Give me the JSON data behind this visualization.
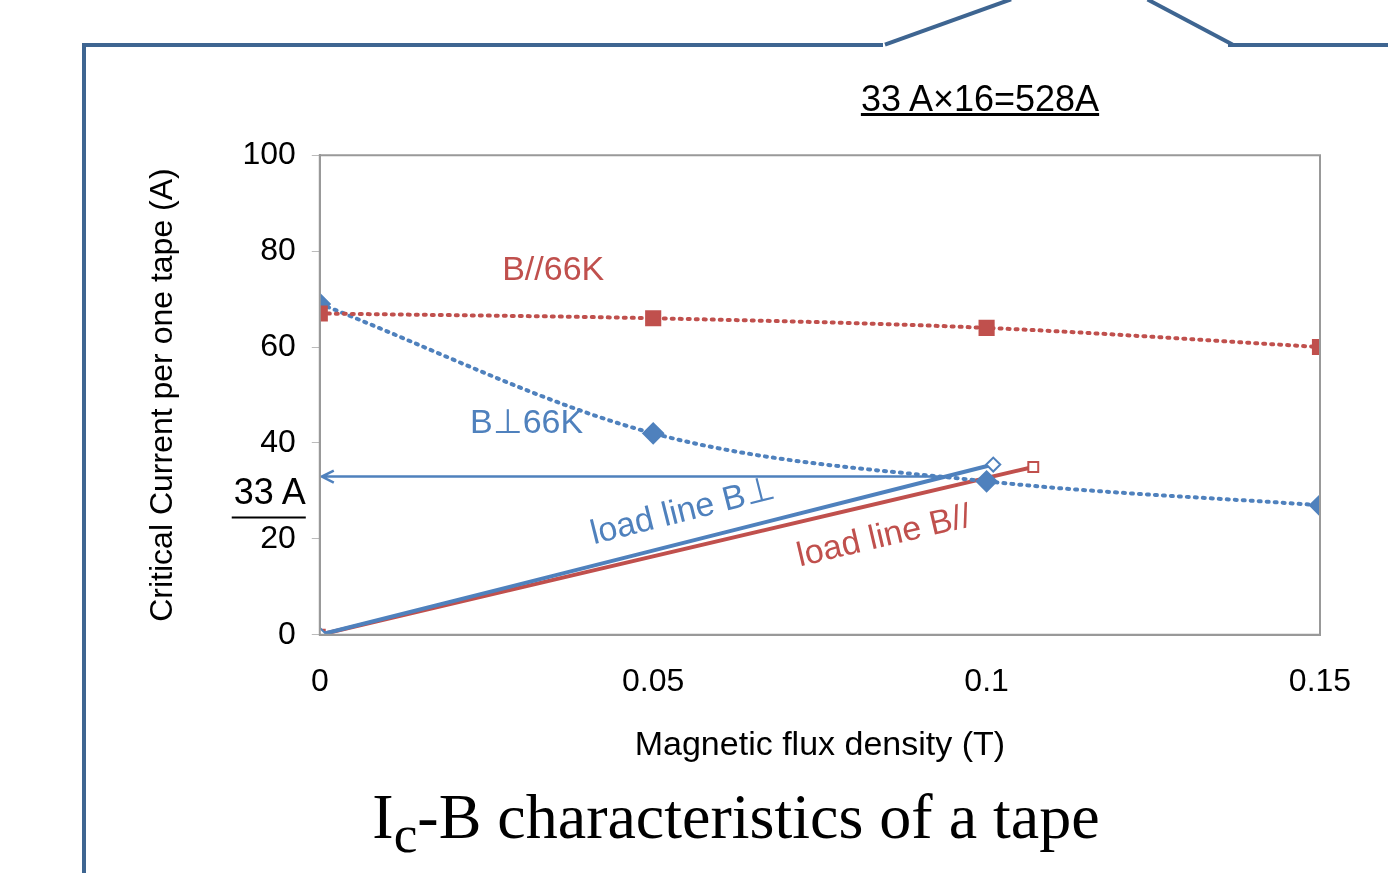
{
  "chart_data": {
    "type": "line",
    "title": "I$_{c}$-B characteristics of a tape",
    "xlabel": "Magnetic flux density (T)",
    "ylabel": "Critical Current per one tape (A)",
    "annotations": [
      "33 A×16=528A"
    ],
    "xlim": [
      0,
      0.15
    ],
    "xticks": [
      0,
      0.05,
      0.1,
      0.15
    ],
    "ylim": [
      0,
      100
    ],
    "yticks": [
      0,
      20,
      40,
      60,
      80,
      100
    ],
    "grid": false,
    "legend": false,
    "series": [
      {
        "name": "B//66K",
        "color": "#c0504d",
        "x": [
          0,
          0.05,
          0.1,
          0.15
        ],
        "values": [
          67,
          66,
          64,
          60
        ],
        "marker": "square",
        "line_style": "dotted"
      },
      {
        "name": "B⊥66K",
        "color": "#4f81bd",
        "x": [
          0,
          0.05,
          0.1,
          0.15
        ],
        "values": [
          69,
          42,
          32,
          27
        ],
        "marker": "diamond",
        "line_style": "dotted"
      },
      {
        "name": "load line B⊥",
        "color": "#4f81bd",
        "x": [
          0,
          0.101
        ],
        "values": [
          0,
          35.5
        ],
        "marker": "diamond",
        "line_style": "solid"
      },
      {
        "name": "load line B//",
        "color": "#c0504d",
        "x": [
          0,
          0.107
        ],
        "values": [
          0,
          35
        ],
        "marker": "square",
        "line_style": "solid"
      }
    ],
    "ref_lines": [
      {
        "axis": "y",
        "value": 33,
        "label": "33 A",
        "color": "#4f81bd"
      }
    ]
  }
}
